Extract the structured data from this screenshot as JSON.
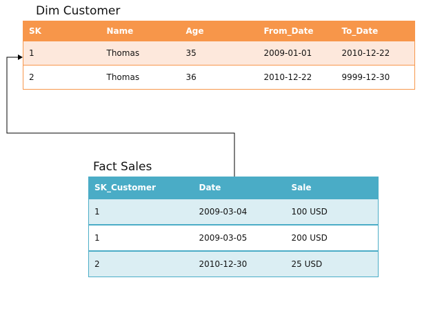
{
  "dim_customer": {
    "title": "Dim Customer",
    "headers": [
      "SK",
      "Name",
      "Age",
      "From_Date",
      "To_Date"
    ],
    "rows": [
      [
        "1",
        "Thomas",
        "35",
        "2009-01-01",
        "2010-12-22"
      ],
      [
        "2",
        "Thomas",
        "36",
        "2010-12-22",
        "9999-12-30"
      ]
    ],
    "header_color": "#f7964a"
  },
  "fact_sales": {
    "title": "Fact Sales",
    "headers": [
      "SK_Customer",
      "Date",
      "Sale"
    ],
    "rows": [
      [
        "1",
        "2009-03-04",
        "100 USD"
      ],
      [
        "1",
        "2009-03-05",
        "200 USD"
      ],
      [
        "2",
        "2010-12-30",
        "25 USD"
      ]
    ],
    "header_color": "#4aacc6"
  }
}
